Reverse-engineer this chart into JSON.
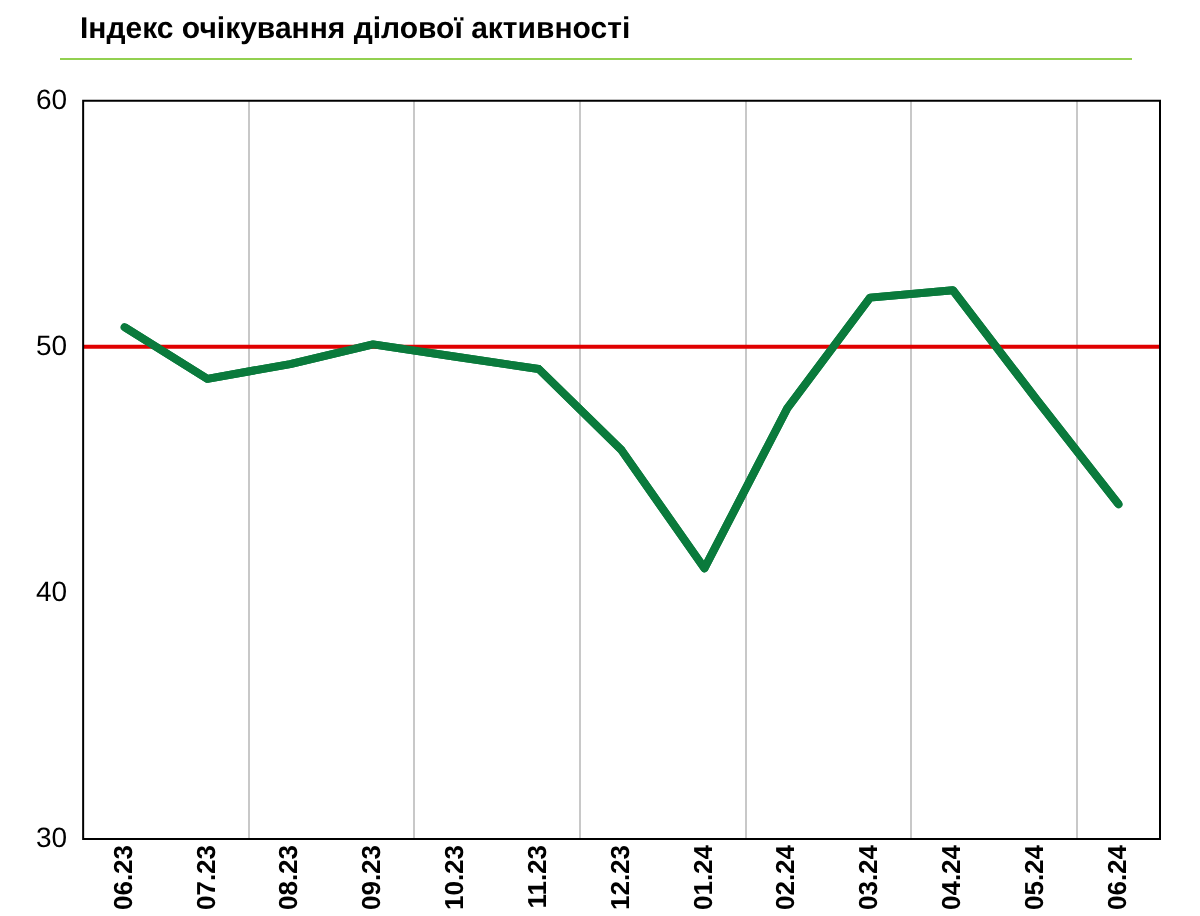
{
  "chart_data": {
    "type": "line",
    "title": "Індекс очікування ділової активності",
    "categories": [
      "06.23",
      "07.23",
      "08.23",
      "09.23",
      "10.23",
      "11.23",
      "12.23",
      "01.24",
      "02.24",
      "03.24",
      "04.24",
      "05.24",
      "06.24"
    ],
    "series": [
      {
        "color": "#0a7a3c",
        "values": [
          50.8,
          48.7,
          49.3,
          50.1,
          49.6,
          49.1,
          45.8,
          41.0,
          47.5,
          52.0,
          52.3,
          47.9,
          43.6
        ]
      }
    ],
    "ylim": [
      30,
      60
    ],
    "yticks": [
      30,
      40,
      50,
      60
    ],
    "grid": "x",
    "legend": false,
    "marker": "none",
    "line_style": "solid",
    "ref_lines": [
      {
        "axis": "y",
        "value": 50,
        "color": "#e00000"
      }
    ]
  }
}
